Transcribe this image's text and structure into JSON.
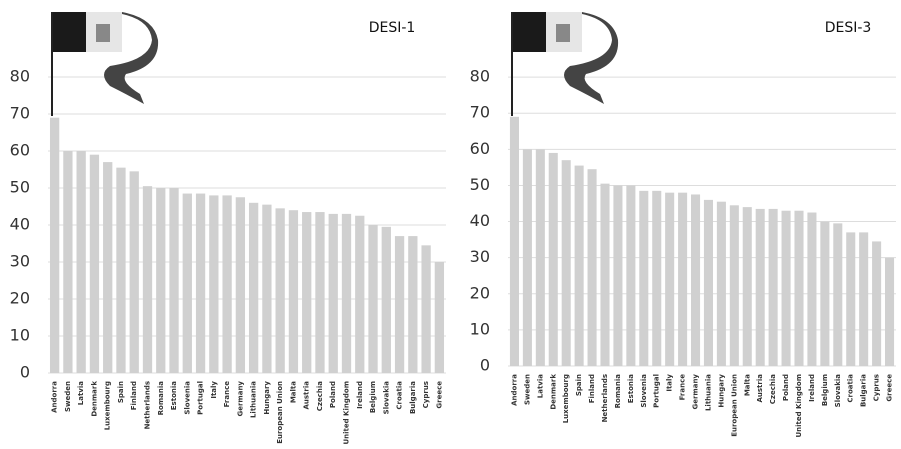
{
  "chart_data": [
    {
      "type": "bar",
      "title": "DESI-1",
      "categories": [
        "Andorra",
        "Sweden",
        "Latvia",
        "Denmark",
        "Luxembourg",
        "Spain",
        "Finland",
        "Netherlands",
        "Romania",
        "Estonia",
        "Slovenia",
        "Portugal",
        "Italy",
        "France",
        "Germany",
        "Lithuania",
        "Hungary",
        "European Union",
        "Malta",
        "Austria",
        "Czechia",
        "Poland",
        "United Kingdom",
        "Ireland",
        "Belgium",
        "Slovakia",
        "Croatia",
        "Bulgaria",
        "Cyprus",
        "Greece"
      ],
      "values": [
        69,
        60,
        60,
        59,
        57,
        55.5,
        54.5,
        50.5,
        50,
        50,
        48.5,
        48.5,
        48,
        48,
        47.5,
        46,
        45.5,
        44.5,
        44,
        43.5,
        43.5,
        43,
        43,
        42.5,
        40,
        39.5,
        37,
        37,
        34.5,
        30
      ],
      "color": "#d0d0d0",
      "ylim": [
        0,
        90
      ],
      "yticks": [
        0,
        10,
        20,
        30,
        40,
        50,
        60,
        70,
        80
      ],
      "grid": true
    },
    {
      "type": "bar",
      "title": "DESI-3",
      "categories": [
        "Andorra",
        "Sweden",
        "Latvia",
        "Denmark",
        "Luxembourg",
        "Spain",
        "Finland",
        "Netherlands",
        "Romania",
        "Estonia",
        "Slovenia",
        "Portugal",
        "Italy",
        "France",
        "Germany",
        "Lithuania",
        "Hungary",
        "European Union",
        "Malta",
        "Austria",
        "Czechia",
        "Poland",
        "United Kingdom",
        "Ireland",
        "Belgium",
        "Slovakia",
        "Croatia",
        "Bulgaria",
        "Cyprus",
        "Greece"
      ],
      "values": [
        69,
        60,
        60,
        59,
        57,
        55.5,
        54.5,
        50.5,
        50,
        50,
        48.5,
        48.5,
        48,
        48,
        47.5,
        46,
        45.5,
        44.5,
        44,
        43.5,
        43.5,
        43,
        43,
        42.5,
        40,
        39.5,
        37,
        37,
        34.5,
        30
      ],
      "color": "#d0d0d0",
      "ylim": [
        0,
        90
      ],
      "yticks": [
        0,
        10,
        20,
        30,
        40,
        50,
        60,
        70,
        80
      ],
      "grid": true
    }
  ]
}
